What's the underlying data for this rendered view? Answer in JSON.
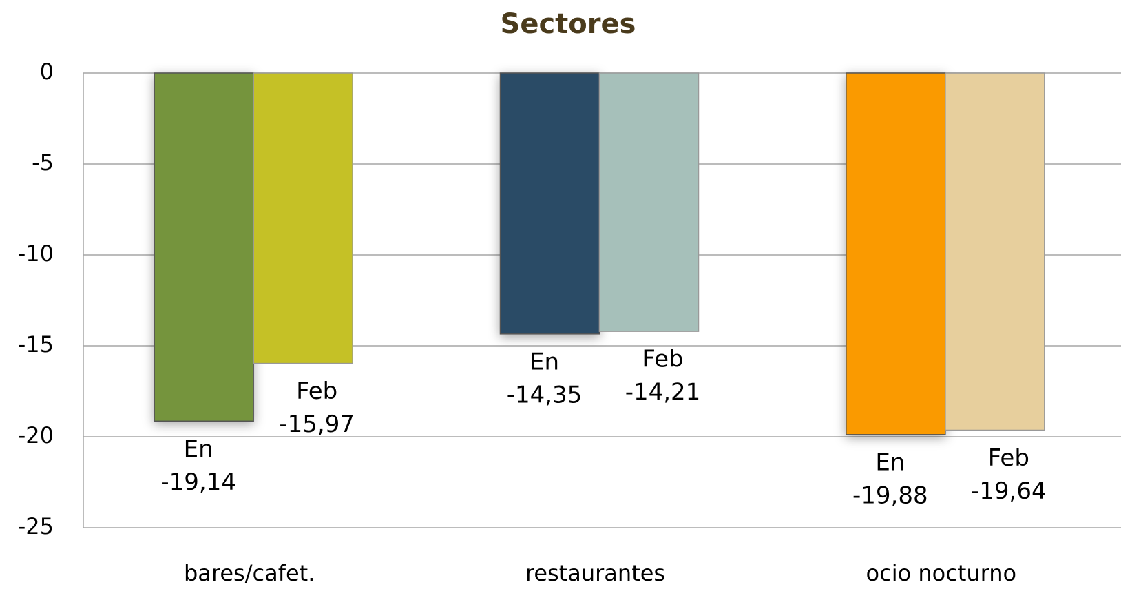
{
  "chart_data": {
    "type": "bar",
    "title": "Sectores",
    "categories": [
      "bares/cafet.",
      "restaurantes",
      "ocio nocturno"
    ],
    "series": [
      {
        "name": "En",
        "colors": [
          "#75943d",
          "#2c4c66",
          "#fa9a04"
        ],
        "values": [
          -19.14,
          -14.35,
          -19.88
        ],
        "value_labels": [
          "-19,14",
          "-14,35",
          "-19,88"
        ]
      },
      {
        "name": "Feb",
        "colors": [
          "#c5c126",
          "#a6c0ba",
          "#e7cf9d"
        ],
        "values": [
          -15.97,
          -14.21,
          -19.64
        ],
        "value_labels": [
          "-15,97",
          "-14,21",
          "-19,64"
        ]
      }
    ],
    "ylim": [
      -25,
      0
    ],
    "yticks": [
      0,
      -5,
      -10,
      -15,
      -20,
      -25
    ],
    "grid": true
  }
}
